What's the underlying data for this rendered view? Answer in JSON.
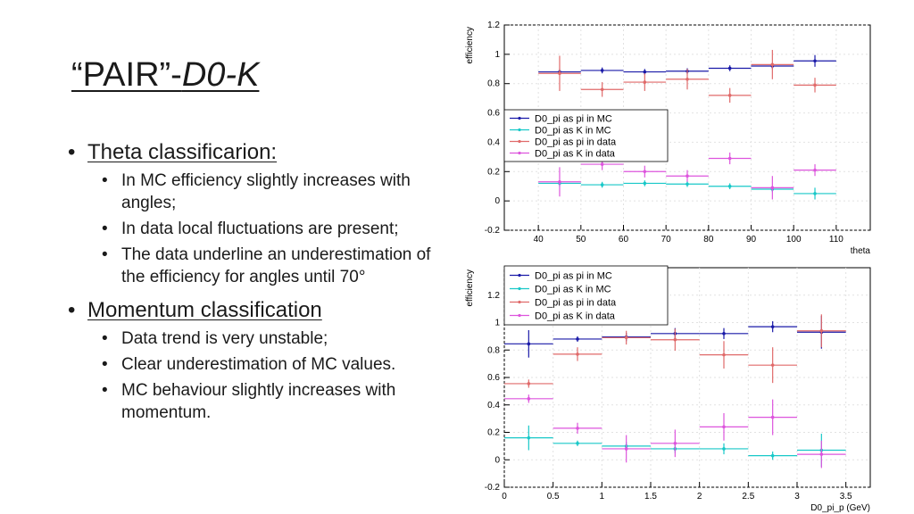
{
  "slide": {
    "title_quote": "“PAIR”-",
    "title_sub": "D0-K",
    "sections": [
      {
        "heading": "Theta classificarion:",
        "items": [
          "In MC efficiency slightly increases with angles;",
          "In data local fluctuations are present;",
          "The data underline an underestimation of the efficiency for angles until 70°"
        ]
      },
      {
        "heading": "Momentum classification",
        "items": [
          "Data trend is very unstable;",
          "Clear underestimation of MC values.",
          "MC behaviour slightly increases with momentum."
        ]
      }
    ]
  },
  "chart_data": [
    {
      "type": "scatter",
      "xlabel": "theta",
      "ylabel": "efficiency",
      "xlim": [
        32,
        118
      ],
      "ylim": [
        -0.2,
        1.2
      ],
      "xticks": [
        40,
        50,
        60,
        70,
        80,
        90,
        100,
        110
      ],
      "yticks": [
        -0.2,
        0,
        0.2,
        0.4,
        0.6,
        0.8,
        1,
        1.2
      ],
      "legend_position": "left-middle",
      "series": [
        {
          "name": "D0_pi as pi in MC",
          "color": "#1a1aa8",
          "x": [
            45,
            55,
            65,
            75,
            85,
            95,
            105
          ],
          "y": [
            0.88,
            0.89,
            0.88,
            0.885,
            0.905,
            0.92,
            0.955
          ],
          "xerr": 5,
          "yerr": [
            0.02,
            0.02,
            0.02,
            0.02,
            0.02,
            0.02,
            0.04
          ]
        },
        {
          "name": "D0_pi as K in MC",
          "color": "#18c8c8",
          "x": [
            45,
            55,
            65,
            75,
            85,
            95,
            105
          ],
          "y": [
            0.12,
            0.11,
            0.12,
            0.115,
            0.1,
            0.08,
            0.05
          ],
          "xerr": 5,
          "yerr": [
            0.02,
            0.02,
            0.02,
            0.02,
            0.02,
            0.02,
            0.04
          ]
        },
        {
          "name": "D0_pi as pi in data",
          "color": "#e06a6a",
          "x": [
            45,
            55,
            65,
            75,
            85,
            95,
            105
          ],
          "y": [
            0.87,
            0.76,
            0.81,
            0.83,
            0.72,
            0.93,
            0.79
          ],
          "xerr": 5,
          "yerr": [
            0.12,
            0.05,
            0.06,
            0.07,
            0.05,
            0.1,
            0.05
          ]
        },
        {
          "name": "D0_pi as K in data",
          "color": "#dd55dd",
          "x": [
            45,
            55,
            65,
            75,
            85,
            95,
            105
          ],
          "y": [
            0.13,
            0.25,
            0.2,
            0.17,
            0.29,
            0.09,
            0.21
          ],
          "xerr": 5,
          "yerr": [
            0.1,
            0.04,
            0.04,
            0.04,
            0.04,
            0.08,
            0.04
          ]
        }
      ]
    },
    {
      "type": "scatter",
      "xlabel": "D0_pi_p (GeV)",
      "ylabel": "efficiency",
      "xlim": [
        0,
        3.75
      ],
      "ylim": [
        -0.2,
        1.4
      ],
      "xticks": [
        0,
        0.5,
        1,
        1.5,
        2,
        2.5,
        3,
        3.5
      ],
      "yticks": [
        -0.2,
        0,
        0.2,
        0.4,
        0.6,
        0.8,
        1,
        1.2
      ],
      "legend_position": "top",
      "series": [
        {
          "name": "D0_pi as pi in MC",
          "color": "#1a1aa8",
          "x": [
            0.25,
            0.75,
            1.25,
            1.75,
            2.25,
            2.75,
            3.25
          ],
          "y": [
            0.845,
            0.88,
            0.895,
            0.92,
            0.92,
            0.97,
            0.93
          ],
          "xerr": 0.25,
          "yerr": [
            0.1,
            0.02,
            0.03,
            0.04,
            0.04,
            0.04,
            0.12
          ]
        },
        {
          "name": "D0_pi as K in MC",
          "color": "#18c8c8",
          "x": [
            0.25,
            0.75,
            1.25,
            1.75,
            2.25,
            2.75,
            3.25
          ],
          "y": [
            0.16,
            0.12,
            0.1,
            0.08,
            0.08,
            0.03,
            0.07
          ],
          "xerr": 0.25,
          "yerr": [
            0.09,
            0.02,
            0.03,
            0.03,
            0.04,
            0.03,
            0.12
          ]
        },
        {
          "name": "D0_pi as pi in data",
          "color": "#e06a6a",
          "x": [
            0.25,
            0.75,
            1.25,
            1.75,
            2.25,
            2.75,
            3.25
          ],
          "y": [
            0.555,
            0.77,
            0.89,
            0.875,
            0.765,
            0.69,
            0.94
          ],
          "xerr": 0.25,
          "yerr": [
            0.03,
            0.05,
            0.05,
            0.08,
            0.1,
            0.13,
            0.12
          ]
        },
        {
          "name": "D0_pi as K in data",
          "color": "#dd55dd",
          "x": [
            0.25,
            0.75,
            1.25,
            1.75,
            2.25,
            2.75,
            3.25
          ],
          "y": [
            0.445,
            0.23,
            0.08,
            0.12,
            0.24,
            0.31,
            0.04
          ],
          "xerr": 0.25,
          "yerr": [
            0.03,
            0.04,
            0.1,
            0.1,
            0.1,
            0.13,
            0.1
          ]
        }
      ]
    }
  ]
}
